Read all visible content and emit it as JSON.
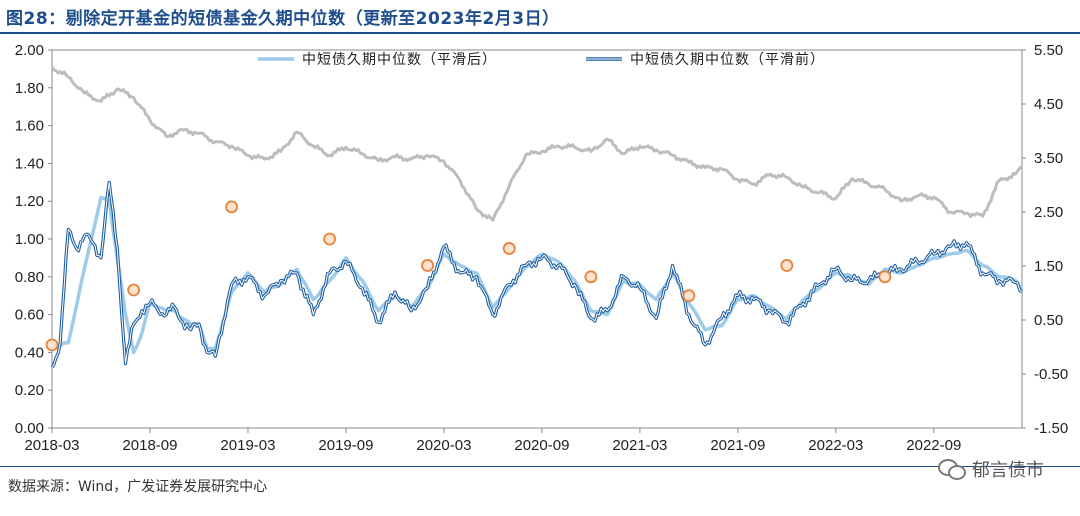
{
  "title": "图28：剔除定开基金的短债基金久期中位数（更新至2023年2月3日）",
  "source": "数据来源：Wind，广发证券发展研究中心",
  "watermark": "郁言债市",
  "chart_data": {
    "type": "line",
    "left_axis": {
      "min": 0.0,
      "max": 2.0,
      "ticks": [
        "0.00",
        "0.20",
        "0.40",
        "0.60",
        "0.80",
        "1.00",
        "1.20",
        "1.40",
        "1.60",
        "1.80",
        "2.00"
      ]
    },
    "right_axis": {
      "min": -1.5,
      "max": 5.5,
      "ticks": [
        "-1.50",
        "-0.50",
        "0.50",
        "1.50",
        "2.50",
        "3.50",
        "4.50",
        "5.50"
      ]
    },
    "x_tick_labels": [
      "2018-03",
      "2018-09",
      "2019-03",
      "2019-09",
      "2020-03",
      "2020-09",
      "2021-03",
      "2021-09",
      "2022-03",
      "2022-09"
    ],
    "x_range": [
      "2018-03",
      "2023-02"
    ],
    "legend": [
      "中短债久期中位数（平滑后）",
      "中短债久期中位数（平滑前）"
    ],
    "colors": {
      "smoothed": "#9dcbe9",
      "raw": "#1f5fa0",
      "gray": "#bdbdbd",
      "dots": "#e8823a"
    },
    "series": [
      {
        "name": "中短债久期中位数（平滑后）",
        "axis": "left",
        "x": [
          0,
          1,
          2,
          3,
          3.5,
          4,
          4.5,
          5,
          5.5,
          6,
          7,
          7.5,
          8,
          8.5,
          9,
          9.5,
          10,
          11,
          12,
          13,
          14,
          15,
          16,
          17,
          18,
          19,
          20,
          21,
          22,
          23,
          24,
          25,
          26,
          27,
          28,
          29,
          30,
          31,
          32,
          33,
          34,
          35,
          36,
          37,
          38,
          39,
          40,
          41,
          42,
          43,
          44,
          45,
          46,
          47,
          48,
          49,
          50,
          51,
          52,
          53,
          54,
          55,
          56,
          57,
          58,
          59,
          59.4
        ],
        "values": [
          0.42,
          0.45,
          0.85,
          1.22,
          1.2,
          0.9,
          0.6,
          0.4,
          0.5,
          0.66,
          0.62,
          0.62,
          0.58,
          0.55,
          0.55,
          0.42,
          0.42,
          0.72,
          0.82,
          0.72,
          0.76,
          0.84,
          0.68,
          0.78,
          0.9,
          0.78,
          0.62,
          0.7,
          0.64,
          0.74,
          0.92,
          0.86,
          0.82,
          0.64,
          0.74,
          0.85,
          0.92,
          0.88,
          0.78,
          0.62,
          0.6,
          0.78,
          0.76,
          0.68,
          0.82,
          0.66,
          0.52,
          0.54,
          0.68,
          0.7,
          0.64,
          0.58,
          0.68,
          0.74,
          0.82,
          0.8,
          0.76,
          0.84,
          0.82,
          0.86,
          0.9,
          0.92,
          0.94,
          0.86,
          0.8,
          0.78,
          0.74
        ]
      },
      {
        "name": "中短债久期中位数（平滑前）",
        "axis": "left",
        "x": [
          0,
          0.5,
          1,
          1.5,
          2,
          2.5,
          3,
          3.5,
          4,
          4.5,
          5,
          5.5,
          6,
          7,
          7.5,
          8,
          8.5,
          9,
          9.5,
          10,
          11,
          12,
          13,
          14,
          15,
          16,
          17,
          18,
          19,
          20,
          21,
          22,
          23,
          24,
          25,
          26,
          27,
          28,
          29,
          30,
          31,
          32,
          33,
          34,
          35,
          36,
          37,
          38,
          39,
          40,
          41,
          42,
          43,
          44,
          45,
          46,
          47,
          48,
          49,
          50,
          51,
          52,
          53,
          54,
          55,
          56,
          57,
          58,
          59,
          59.4
        ],
        "values": [
          0.32,
          0.45,
          1.05,
          0.95,
          1.02,
          0.98,
          0.9,
          1.3,
          0.95,
          0.34,
          0.55,
          0.62,
          0.66,
          0.6,
          0.64,
          0.56,
          0.52,
          0.55,
          0.4,
          0.38,
          0.76,
          0.8,
          0.7,
          0.78,
          0.82,
          0.6,
          0.82,
          0.88,
          0.74,
          0.56,
          0.72,
          0.62,
          0.74,
          0.96,
          0.82,
          0.8,
          0.6,
          0.76,
          0.86,
          0.9,
          0.86,
          0.76,
          0.58,
          0.62,
          0.8,
          0.74,
          0.58,
          0.86,
          0.6,
          0.44,
          0.58,
          0.7,
          0.68,
          0.62,
          0.56,
          0.66,
          0.76,
          0.84,
          0.78,
          0.78,
          0.82,
          0.84,
          0.88,
          0.92,
          0.96,
          0.98,
          0.82,
          0.78,
          0.77,
          0.72
        ]
      },
      {
        "name": "gray series",
        "axis": "right",
        "x": [
          0,
          1,
          2,
          3,
          4,
          5,
          6,
          7,
          8,
          9,
          10,
          11,
          12,
          13,
          14,
          15,
          16,
          17,
          18,
          19,
          20,
          21,
          22,
          23,
          24,
          25,
          26,
          27,
          28,
          29,
          30,
          31,
          32,
          33,
          34,
          35,
          36,
          37,
          38,
          39,
          40,
          41,
          42,
          43,
          44,
          45,
          46,
          47,
          48,
          49,
          50,
          51,
          52,
          53,
          54,
          55,
          56,
          57,
          58,
          59,
          59.4
        ],
        "values": [
          5.18,
          5.0,
          4.7,
          4.55,
          4.78,
          4.62,
          4.2,
          3.9,
          4.02,
          3.96,
          3.8,
          3.72,
          3.55,
          3.48,
          3.62,
          3.98,
          3.72,
          3.55,
          3.7,
          3.58,
          3.45,
          3.52,
          3.48,
          3.55,
          3.44,
          3.08,
          2.55,
          2.35,
          2.98,
          3.55,
          3.62,
          3.72,
          3.7,
          3.62,
          3.85,
          3.58,
          3.72,
          3.65,
          3.55,
          3.42,
          3.32,
          3.3,
          3.1,
          3.02,
          3.2,
          3.14,
          2.96,
          2.86,
          2.75,
          3.12,
          3.02,
          2.92,
          2.7,
          2.8,
          2.78,
          2.5,
          2.48,
          2.42,
          3.08,
          3.2,
          3.35
        ]
      },
      {
        "name": "orange markers",
        "axis": "left",
        "x": [
          0,
          5,
          11,
          17,
          23,
          28,
          33,
          39,
          45,
          51,
          56
        ],
        "values": [
          0.44,
          0.73,
          1.17,
          1.0,
          0.86,
          0.95,
          0.8,
          0.7,
          0.86,
          0.8,
          null
        ]
      }
    ]
  }
}
